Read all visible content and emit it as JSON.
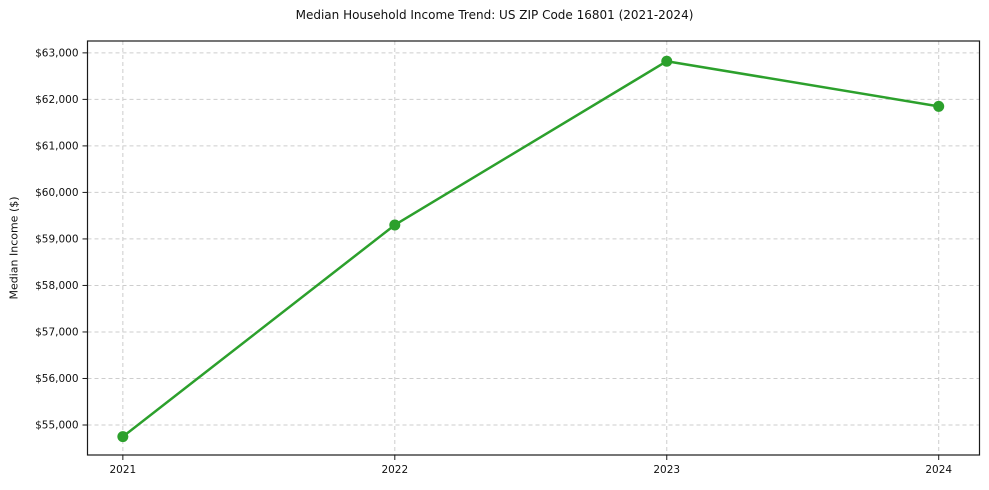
{
  "chart_data": {
    "type": "line",
    "title": "Median Household Income Trend: US ZIP Code 16801 (2021-2024)",
    "ylabel": "Median Income ($)",
    "xlabel": "",
    "x": [
      2021,
      2022,
      2023,
      2024
    ],
    "x_labels": [
      "2021",
      "2022",
      "2023",
      "2024"
    ],
    "values": [
      54750,
      59300,
      62820,
      61850
    ],
    "ytick_values": [
      55000,
      56000,
      57000,
      58000,
      59000,
      60000,
      61000,
      62000,
      63000
    ],
    "ytick_labels": [
      "$55,000",
      "$56,000",
      "$57,000",
      "$58,000",
      "$59,000",
      "$60,000",
      "$61,000",
      "$62,000",
      "$63,000"
    ],
    "ylim": [
      54355,
      63255
    ],
    "xlim": [
      2020.87,
      2024.15
    ],
    "grid": true,
    "grid_style": "dashed",
    "legend": "none",
    "line_color": "#2ca02c",
    "grid_color": "#cdcdcd",
    "axis_color": "#1a1a1a",
    "marker": "circle"
  }
}
